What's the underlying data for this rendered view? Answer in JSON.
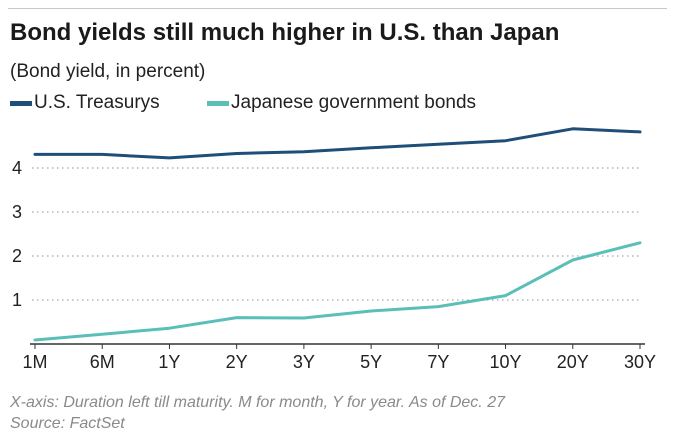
{
  "title": "Bond yields still much higher in U.S. than Japan",
  "subtitle": "(Bond yield, in percent)",
  "footnote_line1": "X-axis: Duration left till maturity. M for month, Y for year. As of Dec. 27",
  "footnote_line2": "Source: FactSet",
  "colors": {
    "us": "#1f4e79",
    "jp": "#5bbfb8",
    "grid": "#b5b5b5",
    "axis": "#333333",
    "text": "#222222"
  },
  "chart_data": {
    "type": "line",
    "title": "Bond yields still much higher in U.S. than Japan",
    "ylabel": "(Bond yield, in percent)",
    "xlabel": "",
    "categories": [
      "1M",
      "6M",
      "1Y",
      "2Y",
      "3Y",
      "5Y",
      "7Y",
      "10Y",
      "20Y",
      "30Y"
    ],
    "yticks": [
      "1",
      "2",
      "3",
      "4"
    ],
    "ylim": [
      0,
      5
    ],
    "grid": "horizontal dotted",
    "legend_position": "top-left",
    "series": [
      {
        "name": "U.S. Treasurys",
        "color": "#1f4e79",
        "values": [
          4.31,
          4.31,
          4.23,
          4.33,
          4.37,
          4.46,
          4.54,
          4.62,
          4.89,
          4.82
        ]
      },
      {
        "name": "Japanese government bonds",
        "color": "#5bbfb8",
        "values": [
          0.09,
          0.22,
          0.36,
          0.6,
          0.59,
          0.75,
          0.85,
          1.1,
          1.91,
          2.3
        ]
      }
    ]
  }
}
